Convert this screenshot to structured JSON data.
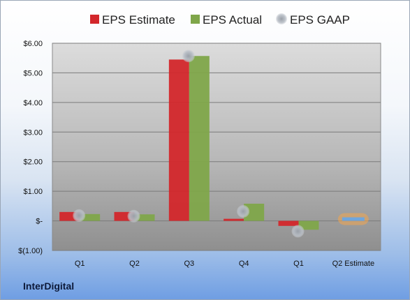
{
  "company": "InterDigital",
  "colors": {
    "estimate": "#d3272b",
    "actual": "#7fa64a",
    "gaap": "#b8bec6",
    "future_estimate": "#6fa6dd",
    "future_glow": "#f2a64e"
  },
  "chart_data": {
    "type": "bar",
    "categories": [
      "Q1",
      "Q2",
      "Q3",
      "Q4",
      "Q1",
      "Q2 Estimate"
    ],
    "y_ticks": [
      "$(1.00)",
      "$-",
      "$1.00",
      "$2.00",
      "$3.00",
      "$4.00",
      "$5.00",
      "$6.00"
    ],
    "ylim": [
      -1,
      6
    ],
    "legend_position": "top",
    "grid": true,
    "series": [
      {
        "name": "EPS Estimate",
        "kind": "bar",
        "values": [
          0.3,
          0.3,
          5.45,
          0.07,
          -0.17,
          null
        ]
      },
      {
        "name": "EPS Actual",
        "kind": "bar",
        "values": [
          0.23,
          0.22,
          5.57,
          0.58,
          -0.3,
          null
        ]
      },
      {
        "name": "EPS GAAP",
        "kind": "marker",
        "values": [
          0.18,
          0.16,
          5.57,
          0.32,
          -0.35,
          null
        ]
      }
    ],
    "future_estimate": {
      "category": "Q2 Estimate",
      "value": 0.12
    }
  }
}
